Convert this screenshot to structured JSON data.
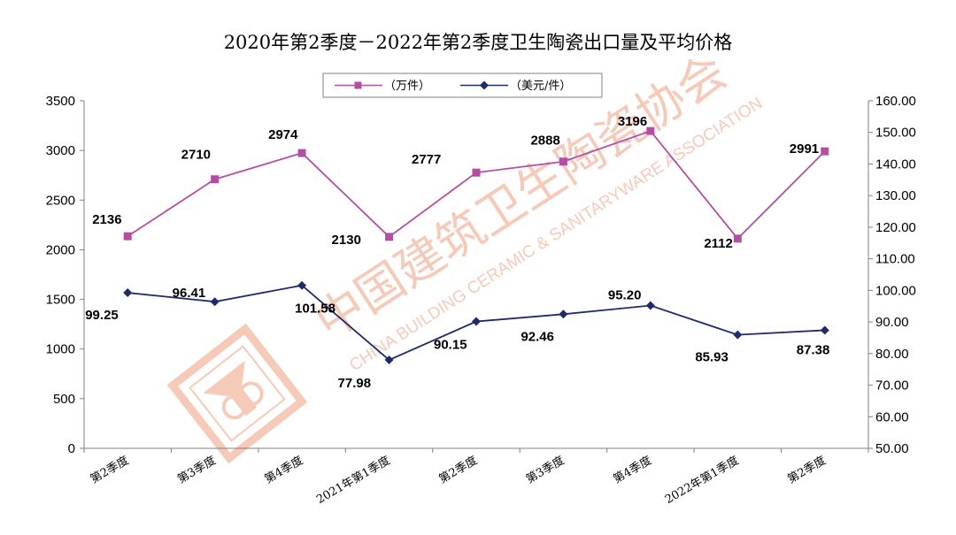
{
  "chart_data": {
    "type": "line",
    "title": "2020年第2季度－2022年第2季度卫生陶瓷出口量及平均价格",
    "categories": [
      "第2季度",
      "第3季度",
      "第4季度",
      "2021年第1季度",
      "第2季度",
      "第3季度",
      "第4季度",
      "2022年第1季度",
      "第2季度"
    ],
    "series": [
      {
        "name": "（万件）",
        "axis": "left",
        "color": "#b44ea0",
        "marker": "square",
        "values": [
          2136,
          2710,
          2974,
          2130,
          2777,
          2888,
          3196,
          2112,
          2991
        ],
        "labels": [
          "2136",
          "2710",
          "2974",
          "2130",
          "2777",
          "2888",
          "3196",
          "2112",
          "2991"
        ]
      },
      {
        "name": "（美元/件）",
        "axis": "right",
        "color": "#1f2a6b",
        "marker": "diamond",
        "values": [
          99.25,
          96.41,
          101.58,
          77.98,
          90.15,
          92.46,
          95.2,
          85.93,
          87.38
        ],
        "labels": [
          "99.25",
          "96.41",
          "101.58",
          "77.98",
          "90.15",
          "92.46",
          "95.20",
          "85.93",
          "87.38"
        ]
      }
    ],
    "left_axis": {
      "min": 0,
      "max": 3500,
      "step": 500,
      "ticks": [
        "0",
        "500",
        "1000",
        "1500",
        "2000",
        "2500",
        "3000",
        "3500"
      ]
    },
    "right_axis": {
      "min": 50,
      "max": 160,
      "step": 10,
      "ticks": [
        "50.00",
        "60.00",
        "70.00",
        "80.00",
        "90.00",
        "100.00",
        "110.00",
        "120.00",
        "130.00",
        "140.00",
        "150.00",
        "160.00"
      ]
    },
    "legend_position": "top-center",
    "grid": false
  },
  "watermark": {
    "text_cn": "中国建筑卫生陶瓷协会",
    "text_en": "CHINA BUILDING CERAMIC & SANITARYWARE ASSOCIATION",
    "color": "#f2b8a0"
  }
}
